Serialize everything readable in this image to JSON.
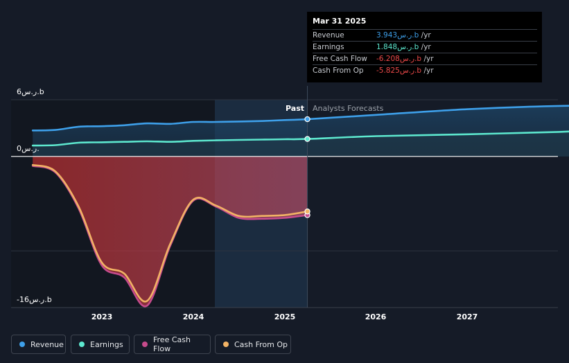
{
  "tooltip": {
    "date": "Mar 31 2025",
    "rows": [
      {
        "label": "Revenue",
        "value": "3.943ر.س.b",
        "unit": "/yr",
        "color": "#3ea0ea"
      },
      {
        "label": "Earnings",
        "value": "1.848ر.س.b",
        "unit": "/yr",
        "color": "#5de8cf"
      },
      {
        "label": "Free Cash Flow",
        "value": "-6.208ر.س.b",
        "unit": "/yr",
        "color": "#ee4a4a"
      },
      {
        "label": "Cash From Op",
        "value": "-5.825ر.س.b",
        "unit": "/yr",
        "color": "#ee4a4a"
      }
    ]
  },
  "labels": {
    "past": "Past",
    "forecast": "Analysts Forecasts"
  },
  "y_ticks": [
    {
      "value": 6,
      "label": "6ر.س.b"
    },
    {
      "value": 0,
      "label": "0ر.س."
    },
    {
      "value": -16,
      "label": "-16ر.س.b"
    }
  ],
  "legend": [
    {
      "label": "Revenue",
      "color": "#3ea0ea"
    },
    {
      "label": "Earnings",
      "color": "#5de8cf"
    },
    {
      "label": "Free Cash Flow",
      "color": "#c64b8c"
    },
    {
      "label": "Cash From Op",
      "color": "#f2b365"
    }
  ],
  "chart_data": {
    "type": "line",
    "unit": "ر.س.b",
    "ylim": [
      -16,
      6
    ],
    "x_ticks": [
      "2023",
      "2024",
      "2025",
      "2026",
      "2027"
    ],
    "past_end": "2025-03-31",
    "series": [
      {
        "name": "Revenue",
        "color": "#3ea0ea",
        "points": [
          [
            "2022-03-31",
            2.75
          ],
          [
            "2022-06-30",
            2.8
          ],
          [
            "2022-09-30",
            3.15
          ],
          [
            "2022-12-31",
            3.2
          ],
          [
            "2023-03-31",
            3.3
          ],
          [
            "2023-06-30",
            3.5
          ],
          [
            "2023-09-30",
            3.45
          ],
          [
            "2023-12-31",
            3.65
          ],
          [
            "2024-03-31",
            3.65
          ],
          [
            "2024-06-30",
            3.7
          ],
          [
            "2024-09-30",
            3.75
          ],
          [
            "2024-12-31",
            3.85
          ],
          [
            "2025-03-31",
            3.943
          ]
        ],
        "forecast": [
          [
            "2025-03-31",
            3.943
          ],
          [
            "2025-12-31",
            4.4
          ],
          [
            "2026-12-31",
            5.0
          ],
          [
            "2027-12-31",
            5.35
          ],
          [
            "2028-12-31",
            5.4
          ]
        ]
      },
      {
        "name": "Earnings",
        "color": "#5de8cf",
        "points": [
          [
            "2022-03-31",
            1.15
          ],
          [
            "2022-06-30",
            1.2
          ],
          [
            "2022-09-30",
            1.45
          ],
          [
            "2022-12-31",
            1.5
          ],
          [
            "2023-03-31",
            1.55
          ],
          [
            "2023-06-30",
            1.6
          ],
          [
            "2023-09-30",
            1.55
          ],
          [
            "2023-12-31",
            1.65
          ],
          [
            "2024-03-31",
            1.7
          ],
          [
            "2024-06-30",
            1.75
          ],
          [
            "2024-09-30",
            1.78
          ],
          [
            "2024-12-31",
            1.82
          ],
          [
            "2025-03-31",
            1.848
          ]
        ],
        "forecast": [
          [
            "2025-03-31",
            1.848
          ],
          [
            "2025-12-31",
            2.15
          ],
          [
            "2026-12-31",
            2.35
          ],
          [
            "2027-12-31",
            2.6
          ],
          [
            "2028-12-31",
            3.0
          ]
        ]
      },
      {
        "name": "Free Cash Flow",
        "color": "#c64b8c",
        "points": [
          [
            "2022-03-31",
            -1.0
          ],
          [
            "2022-06-30",
            -1.7
          ],
          [
            "2022-09-30",
            -5.5
          ],
          [
            "2022-12-31",
            -11.5
          ],
          [
            "2023-03-31",
            -12.8
          ],
          [
            "2023-06-30",
            -15.8
          ],
          [
            "2023-09-30",
            -9.5
          ],
          [
            "2023-12-31",
            -4.7
          ],
          [
            "2024-03-31",
            -5.3
          ],
          [
            "2024-06-30",
            -6.5
          ],
          [
            "2024-09-30",
            -6.6
          ],
          [
            "2024-12-31",
            -6.5
          ],
          [
            "2025-03-31",
            -6.208
          ]
        ]
      },
      {
        "name": "Cash From Op",
        "color": "#f2b365",
        "points": [
          [
            "2022-03-31",
            -0.9
          ],
          [
            "2022-06-30",
            -1.6
          ],
          [
            "2022-09-30",
            -5.3
          ],
          [
            "2022-12-31",
            -11.2
          ],
          [
            "2023-03-31",
            -12.4
          ],
          [
            "2023-06-30",
            -15.3
          ],
          [
            "2023-09-30",
            -9.3
          ],
          [
            "2023-12-31",
            -4.6
          ],
          [
            "2024-03-31",
            -5.2
          ],
          [
            "2024-06-30",
            -6.3
          ],
          [
            "2024-09-30",
            -6.3
          ],
          [
            "2024-12-31",
            -6.2
          ],
          [
            "2025-03-31",
            -5.825
          ]
        ]
      }
    ]
  }
}
